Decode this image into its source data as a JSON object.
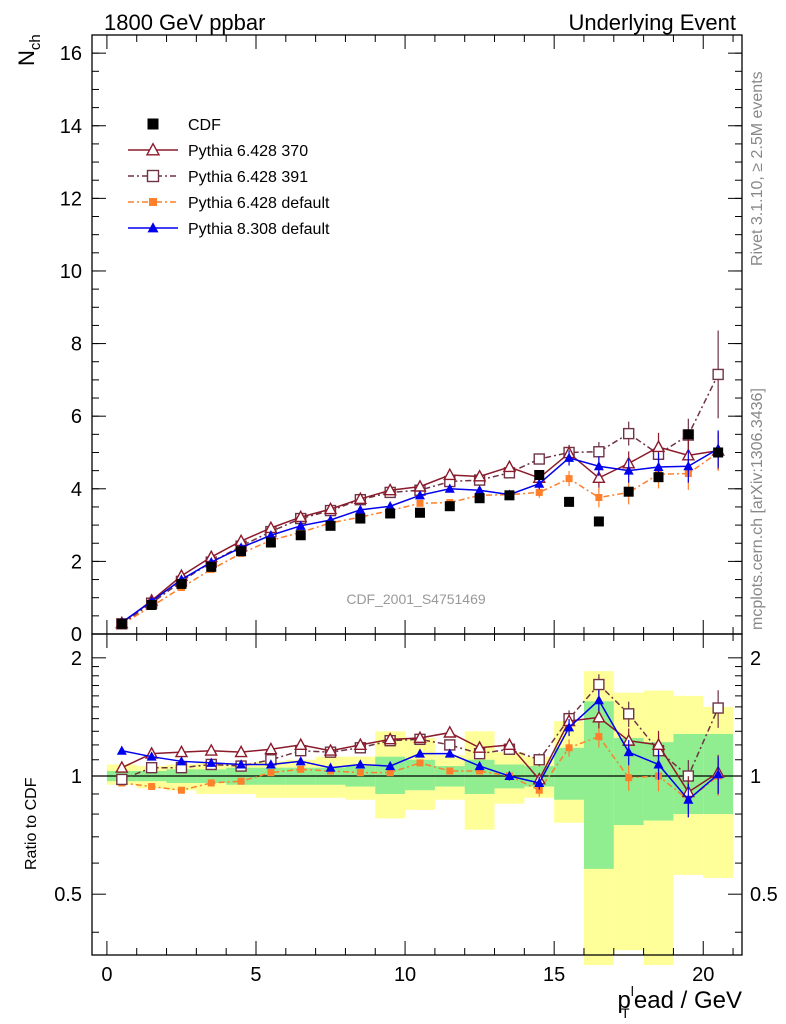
{
  "header": {
    "left": "1800 GeV ppbar",
    "right": "Underlying Event"
  },
  "side_labels": {
    "rivet": "Rivet 3.1.10, ≥ 2.5M events",
    "mcplots": "mcplots.cern.ch [arXiv:1306.3436]"
  },
  "watermark": "CDF_2001_S4751469",
  "colors": {
    "cdf": "#000000",
    "p370": "#8b1a2b",
    "p391": "#6e3344",
    "p6def": "#ff7f2a",
    "p8def": "#0000ee",
    "band_inner": "#90ee90",
    "band_outer": "#ffff99"
  },
  "chart_data": [
    {
      "type": "scatter",
      "title": "",
      "ylabel": "N_ch",
      "ylabel_main": "N",
      "ylabel_sub": "ch",
      "xlim": [
        -0.5,
        21.3
      ],
      "ylim": [
        0,
        16.5
      ],
      "x_ticks": [
        0,
        5,
        10,
        15,
        20
      ],
      "y_ticks": [
        0,
        2,
        4,
        6,
        8,
        10,
        12,
        14,
        16
      ],
      "legend_position": "top-left",
      "x": [
        0.5,
        1.5,
        2.5,
        3.5,
        4.5,
        5.5,
        6.5,
        7.5,
        8.5,
        9.5,
        10.5,
        11.5,
        12.5,
        13.5,
        14.5,
        15.5,
        16.5,
        17.5,
        18.5,
        19.5,
        20.5
      ],
      "series": [
        {
          "name": "CDF",
          "key": "cdf",
          "values": [
            0.28,
            0.8,
            1.38,
            1.85,
            2.28,
            2.52,
            2.72,
            2.98,
            3.18,
            3.32,
            3.34,
            3.52,
            3.74,
            3.82,
            4.38,
            3.64,
            3.1,
            3.92,
            4.32,
            5.5,
            5.0
          ]
        },
        {
          "name": "Pythia 6.428 370",
          "key": "p370",
          "values": [
            0.3,
            0.92,
            1.6,
            2.12,
            2.56,
            2.92,
            3.22,
            3.44,
            3.72,
            3.96,
            4.06,
            4.38,
            4.34,
            4.6,
            4.3,
            4.98,
            4.3,
            4.7,
            5.15,
            4.92,
            5.05
          ]
        },
        {
          "name": "Pythia 6.428 391",
          "key": "p391",
          "values": [
            0.28,
            0.85,
            1.45,
            1.98,
            2.42,
            2.82,
            3.18,
            3.4,
            3.7,
            3.9,
            3.96,
            4.2,
            4.24,
            4.44,
            4.82,
            5.0,
            5.02,
            5.52,
            4.95,
            5.48,
            7.15
          ]
        },
        {
          "name": "Pythia 6.428 default",
          "key": "p6def",
          "values": [
            0.27,
            0.76,
            1.28,
            1.78,
            2.22,
            2.58,
            2.8,
            3.06,
            3.22,
            3.4,
            3.6,
            3.62,
            3.82,
            3.84,
            3.9,
            4.28,
            3.76,
            3.9,
            4.4,
            4.42,
            5.0
          ]
        },
        {
          "name": "Pythia 8.308 default",
          "key": "p8def",
          "values": [
            0.32,
            0.9,
            1.5,
            1.98,
            2.38,
            2.72,
            2.98,
            3.14,
            3.42,
            3.52,
            3.82,
            4.0,
            3.96,
            3.84,
            4.14,
            4.85,
            4.62,
            4.5,
            4.6,
            4.62,
            5.1
          ]
        }
      ]
    },
    {
      "type": "scatter",
      "title": "",
      "ylabel": "Ratio to CDF",
      "xlabel": "p_T^lead / GeV",
      "xlabel_main": "p",
      "xlabel_sub": "T",
      "xlabel_sup": "l",
      "xlabel_rest": "ead / GeV",
      "xlim": [
        -0.5,
        21.3
      ],
      "ylim": [
        0.35,
        2.3
      ],
      "y_ticks": [
        0.5,
        1,
        2
      ],
      "y_tick_labels": [
        "0.5",
        "1",
        "2"
      ],
      "x_tick_labels": [
        "0",
        "5",
        "10",
        "15",
        "20"
      ],
      "reference_line": 1,
      "x": [
        0.5,
        1.5,
        2.5,
        3.5,
        4.5,
        5.5,
        6.5,
        7.5,
        8.5,
        9.5,
        10.5,
        11.5,
        12.5,
        13.5,
        14.5,
        15.5,
        16.5,
        17.5,
        18.5,
        19.5,
        20.5
      ],
      "band_edges": [
        0,
        1,
        2,
        3,
        4,
        5,
        6,
        7,
        8,
        9,
        10,
        11,
        12,
        13,
        14,
        15,
        16,
        17,
        18,
        19,
        20,
        21
      ],
      "band_inner": [
        [
          0.97,
          1.03
        ],
        [
          0.97,
          1.03
        ],
        [
          0.96,
          1.04
        ],
        [
          0.96,
          1.04
        ],
        [
          0.95,
          1.05
        ],
        [
          0.95,
          1.05
        ],
        [
          0.95,
          1.05
        ],
        [
          0.95,
          1.05
        ],
        [
          0.94,
          1.06
        ],
        [
          0.9,
          1.12
        ],
        [
          0.92,
          1.1
        ],
        [
          0.94,
          1.06
        ],
        [
          0.9,
          1.1
        ],
        [
          0.93,
          1.07
        ],
        [
          0.94,
          1.06
        ],
        [
          0.87,
          1.18
        ],
        [
          0.58,
          1.55
        ],
        [
          0.75,
          1.25
        ],
        [
          0.77,
          1.22
        ],
        [
          0.8,
          1.28
        ],
        [
          0.8,
          1.28
        ]
      ],
      "band_outer": [
        [
          0.95,
          1.07
        ],
        [
          0.93,
          1.06
        ],
        [
          0.92,
          1.07
        ],
        [
          0.9,
          1.08
        ],
        [
          0.9,
          1.08
        ],
        [
          0.88,
          1.09
        ],
        [
          0.88,
          1.1
        ],
        [
          0.88,
          1.12
        ],
        [
          0.87,
          1.12
        ],
        [
          0.78,
          1.3
        ],
        [
          0.82,
          1.25
        ],
        [
          0.87,
          1.13
        ],
        [
          0.73,
          1.3
        ],
        [
          0.85,
          1.15
        ],
        [
          0.88,
          1.12
        ],
        [
          0.76,
          1.38
        ],
        [
          0.33,
          1.85
        ],
        [
          0.36,
          1.63
        ],
        [
          0.33,
          1.65
        ],
        [
          0.56,
          1.6
        ],
        [
          0.55,
          1.5
        ]
      ],
      "series": [
        {
          "name": "Pythia 6.428 370",
          "key": "p370",
          "values": [
            1.05,
            1.14,
            1.15,
            1.16,
            1.15,
            1.17,
            1.2,
            1.16,
            1.2,
            1.24,
            1.25,
            1.29,
            1.18,
            1.2,
            0.98,
            1.38,
            1.41,
            1.23,
            1.2,
            0.91,
            1.02
          ]
        },
        {
          "name": "Pythia 6.428 391",
          "key": "p391",
          "values": [
            0.98,
            1.05,
            1.05,
            1.07,
            1.06,
            1.1,
            1.16,
            1.15,
            1.18,
            1.23,
            1.24,
            1.2,
            1.14,
            1.17,
            1.1,
            1.4,
            1.71,
            1.44,
            1.16,
            1.0,
            1.49
          ]
        },
        {
          "name": "Pythia 6.428 default",
          "key": "p6def",
          "values": [
            0.96,
            0.94,
            0.92,
            0.96,
            0.97,
            1.02,
            1.04,
            1.03,
            1.02,
            1.02,
            1.08,
            1.03,
            1.03,
            1.0,
            0.92,
            1.18,
            1.26,
            0.99,
            1.0,
            0.87,
            1.0
          ]
        },
        {
          "name": "Pythia 8.308 default",
          "key": "p8def",
          "values": [
            1.16,
            1.12,
            1.09,
            1.08,
            1.07,
            1.07,
            1.09,
            1.05,
            1.07,
            1.06,
            1.14,
            1.14,
            1.06,
            1.0,
            0.96,
            1.33,
            1.56,
            1.15,
            1.07,
            0.87,
            1.01
          ]
        }
      ]
    }
  ]
}
